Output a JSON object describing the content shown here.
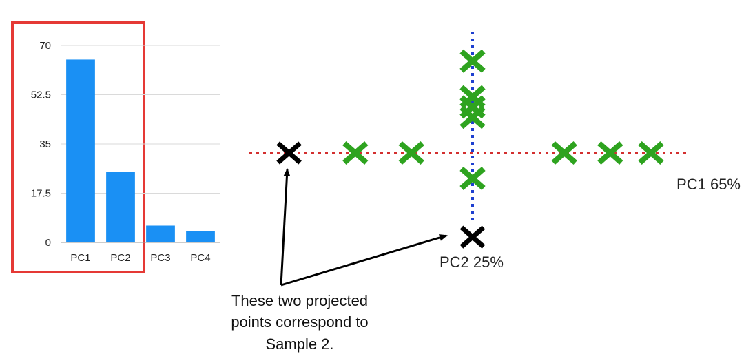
{
  "chart_data": [
    {
      "type": "bar",
      "categories": [
        "PC1",
        "PC2",
        "PC3",
        "PC4"
      ],
      "values": [
        65,
        25,
        6,
        4
      ],
      "ylim": [
        0,
        70
      ],
      "yticks": [
        "0",
        "17.5",
        "35",
        "52.5",
        "70"
      ],
      "grid": true,
      "highlight": {
        "categories": [
          "PC1",
          "PC2"
        ],
        "color": "#e53935"
      },
      "bar_color": "#1a90f4"
    },
    {
      "type": "scatter",
      "axes": [
        {
          "label": "PC1 65%",
          "orientation": "horizontal",
          "color": "#d32f2f",
          "style": "dotted"
        },
        {
          "label": "PC2 25%",
          "orientation": "vertical",
          "color": "#1e40d0",
          "style": "dotted"
        }
      ],
      "series": [
        {
          "color": "#2ea31f",
          "marker": "x",
          "points": [
            [
              -2.3,
              0
            ],
            [
              -1.2,
              0
            ],
            [
              1.8,
              0
            ],
            [
              2.7,
              0
            ],
            [
              3.5,
              0
            ],
            [
              0,
              1.8
            ],
            [
              0,
              1.1
            ],
            [
              0,
              0.9
            ],
            [
              0,
              0.7
            ],
            [
              0,
              -0.5
            ]
          ]
        },
        {
          "color": "#000000",
          "marker": "x",
          "points": [
            [
              -3.6,
              0
            ],
            [
              0,
              -1.65
            ]
          ]
        }
      ]
    }
  ],
  "annotation": {
    "lines": [
      "These two projected",
      "points correspond to",
      "Sample 2."
    ]
  }
}
